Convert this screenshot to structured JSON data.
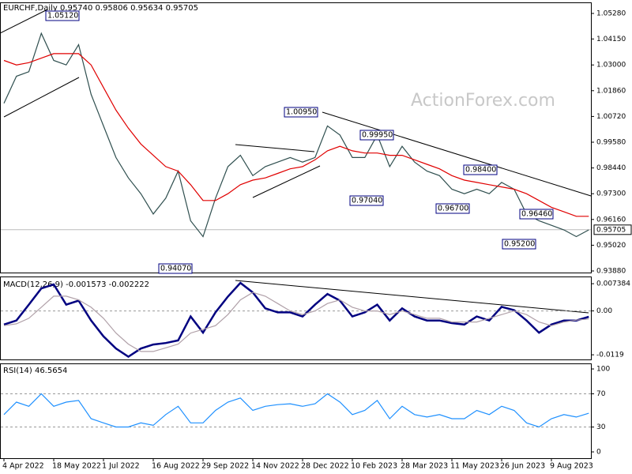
{
  "chart_data": [
    {
      "type": "line",
      "title": "EURCHF,Daily  0.95740 0.95806 0.95634 0.95705",
      "watermark": "ActionForex.com",
      "categories": [
        "4 Apr 2022",
        null,
        null,
        null,
        "18 May 2022",
        null,
        null,
        null,
        "1 Jul 2022",
        null,
        null,
        null,
        "16 Aug 2022",
        null,
        null,
        null,
        "29 Sep 2022",
        null,
        null,
        null,
        "14 Nov 2022",
        null,
        null,
        null,
        "28 Dec 2022",
        null,
        null,
        null,
        "10 Feb 2023",
        null,
        null,
        null,
        "28 Mar 2023",
        null,
        null,
        null,
        "11 May 2023",
        null,
        null,
        null,
        "26 Jun 2023",
        null,
        null,
        null,
        "9 Aug 2023",
        null,
        null,
        null
      ],
      "series": [
        {
          "name": "Close",
          "color": "#2f4f4f",
          "values": [
            1.013,
            1.025,
            1.027,
            1.044,
            1.032,
            1.03,
            1.039,
            1.017,
            1.003,
            0.989,
            0.98,
            0.973,
            0.964,
            0.971,
            0.983,
            0.961,
            0.954,
            0.971,
            0.985,
            0.99,
            0.981,
            0.985,
            0.987,
            0.989,
            0.987,
            0.989,
            1.003,
            0.999,
            0.989,
            0.989,
            0.999,
            0.985,
            0.994,
            0.987,
            0.983,
            0.981,
            0.975,
            0.973,
            0.975,
            0.973,
            0.978,
            0.975,
            0.964,
            0.961,
            0.959,
            0.957,
            0.954,
            0.957
          ]
        },
        {
          "name": "MA",
          "color": "#e00000",
          "values": [
            1.032,
            1.03,
            1.031,
            1.033,
            1.035,
            1.035,
            1.035,
            1.03,
            1.02,
            1.01,
            1.002,
            0.995,
            0.99,
            0.985,
            0.983,
            0.977,
            0.97,
            0.97,
            0.973,
            0.977,
            0.979,
            0.98,
            0.982,
            0.984,
            0.985,
            0.988,
            0.992,
            0.994,
            0.992,
            0.991,
            0.991,
            0.99,
            0.99,
            0.988,
            0.986,
            0.984,
            0.981,
            0.979,
            0.978,
            0.977,
            0.976,
            0.975,
            0.973,
            0.97,
            0.967,
            0.965,
            0.963,
            0.963
          ]
        }
      ],
      "ylim": [
        0.9381,
        1.0577
      ],
      "yticks": [
        {
          "value": 1.0528,
          "label": "1.05280"
        },
        {
          "value": 1.0415,
          "label": "1.04150"
        },
        {
          "value": 1.03,
          "label": "1.03000"
        },
        {
          "value": 1.0186,
          "label": "1.01860"
        },
        {
          "value": 1.0072,
          "label": "1.00720"
        },
        {
          "value": 0.9958,
          "label": "0.99580"
        },
        {
          "value": 0.9844,
          "label": "0.98440"
        },
        {
          "value": 0.973,
          "label": "0.97300"
        },
        {
          "value": 0.9616,
          "label": "0.96160"
        },
        {
          "value": 0.9502,
          "label": "0.95020"
        },
        {
          "value": 0.9388,
          "label": "0.93880"
        }
      ],
      "last_price": 0.95705,
      "annotations": [
        "1.05120",
        "1.00950",
        "0.99950",
        "0.97040",
        "0.98400",
        "0.96700",
        "0.96460",
        "0.95200",
        "0.94070"
      ]
    },
    {
      "type": "line",
      "title": "MACD(12,26,9) -0.001573 -0.002222",
      "series": [
        {
          "name": "MACD",
          "color": "#000080",
          "values": [
            -0.0037,
            -0.0026,
            0.0017,
            0.0061,
            0.0072,
            0.0017,
            0.0028,
            -0.0026,
            -0.0069,
            -0.0102,
            -0.0124,
            -0.0102,
            -0.0091,
            -0.0087,
            -0.008,
            -0.0015,
            -0.0059,
            -0.0004,
            0.0039,
            0.0076,
            0.005,
            0.0007,
            -0.0004,
            -0.0004,
            -0.0015,
            0.0017,
            0.0046,
            0.0028,
            -0.0015,
            -0.0004,
            0.0017,
            -0.0026,
            0.0007,
            -0.0015,
            -0.0026,
            -0.0026,
            -0.0033,
            -0.0037,
            -0.0015,
            -0.0026,
            0.0011,
            0.0002,
            -0.0026,
            -0.0059,
            -0.0037,
            -0.0026,
            -0.0026,
            -0.0016
          ]
        },
        {
          "name": "Signal",
          "color": "#b0a0a8",
          "values": [
            -0.004,
            -0.0035,
            -0.002,
            0.001,
            0.004,
            0.004,
            0.003,
            0.001,
            -0.002,
            -0.006,
            -0.009,
            -0.011,
            -0.011,
            -0.01,
            -0.009,
            -0.006,
            -0.005,
            -0.004,
            -0.001,
            0.003,
            0.005,
            0.004,
            0.002,
            0,
            -0.001,
            0,
            0.002,
            0.003,
            0.001,
            0,
            0,
            -0.001,
            0,
            -0.001,
            -0.002,
            -0.002,
            -0.003,
            -0.003,
            -0.003,
            -0.002,
            -0.001,
            0,
            -0.001,
            -0.003,
            -0.004,
            -0.003,
            -0.0025,
            -0.0022
          ]
        }
      ],
      "ylim": [
        -0.01316,
        0.009337
      ],
      "yticks": [
        0.007384,
        {
          "value": 0,
          "label": "0.00"
        },
        -0.0119
      ],
      "levels": [
        0
      ]
    },
    {
      "type": "line",
      "title": "RSI(14) 46.5654",
      "series": [
        {
          "name": "RSI",
          "color": "#1e90ff",
          "values": [
            45,
            60,
            55,
            70,
            55,
            60,
            62,
            40,
            35,
            30,
            30,
            35,
            32,
            45,
            55,
            35,
            35,
            50,
            60,
            65,
            50,
            55,
            57,
            58,
            55,
            58,
            70,
            60,
            45,
            50,
            62,
            40,
            55,
            45,
            42,
            45,
            40,
            40,
            50,
            45,
            55,
            50,
            35,
            30,
            40,
            45,
            42,
            46.6
          ]
        }
      ],
      "ylim": [
        -7.6,
        106.7
      ],
      "yticks": [
        100,
        70,
        30,
        0
      ],
      "levels": [
        70,
        30
      ]
    }
  ]
}
